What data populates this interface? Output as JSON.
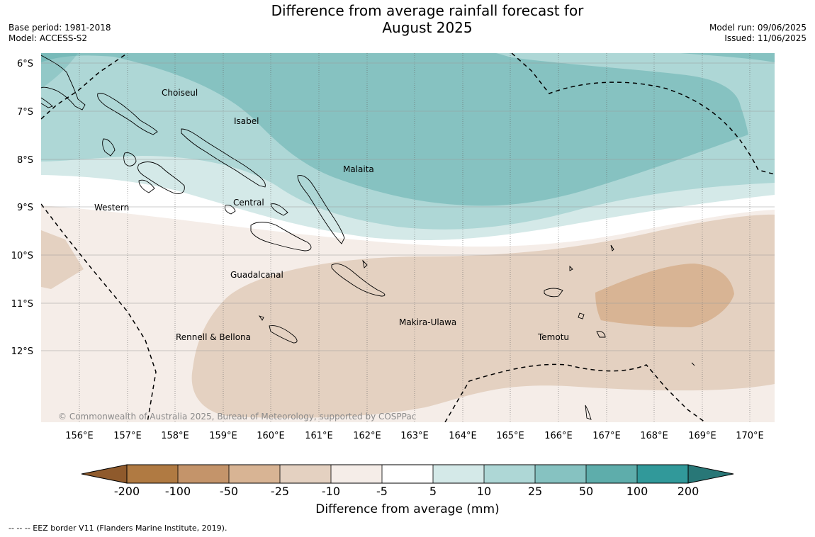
{
  "title": {
    "line1": "Difference from average rainfall forecast for",
    "line2": "August 2025"
  },
  "meta": {
    "base_period": "Base period: 1981-2018",
    "model": "Model: ACCESS-S2",
    "model_run": "Model run: 09/06/2025",
    "issued": "Issued: 11/06/2025"
  },
  "map": {
    "lon_range": [
      155.2,
      170.5
    ],
    "lat_range": [
      -13.5,
      -5.8
    ],
    "lon_ticks": [
      "156°E",
      "157°E",
      "158°E",
      "159°E",
      "160°E",
      "161°E",
      "162°E",
      "163°E",
      "164°E",
      "165°E",
      "166°E",
      "167°E",
      "168°E",
      "169°E",
      "170°E"
    ],
    "lat_ticks": [
      "6°S",
      "7°S",
      "8°S",
      "9°S",
      "10°S",
      "11°S",
      "12°S"
    ],
    "province_labels": [
      {
        "name": "Choiseul"
      },
      {
        "name": "Isabel"
      },
      {
        "name": "Malaita"
      },
      {
        "name": "Western"
      },
      {
        "name": "Central"
      },
      {
        "name": "Guadalcanal"
      },
      {
        "name": "Makira-Ulawa"
      },
      {
        "name": "Rennell & Bellona"
      },
      {
        "name": "Temotu"
      }
    ],
    "copyright": "© Commonwealth of Australia 2025, Bureau of Meteorology, supported by COSPPac"
  },
  "colorbar": {
    "title": "Difference from average (mm)",
    "tick_labels": [
      "-200",
      "-100",
      "-50",
      "-25",
      "-10",
      "-5",
      "5",
      "10",
      "25",
      "50",
      "100",
      "200"
    ],
    "colors": [
      "#8f5a2c",
      "#b07a42",
      "#c4946a",
      "#d8b494",
      "#e4d1c1",
      "#f5ede8",
      "#ffffff",
      "#d4e9e8",
      "#aed7d6",
      "#86c2c1",
      "#5eadab",
      "#31999a",
      "#287777"
    ]
  },
  "footnote": "--  --  -- EEZ border V11 (Flanders Marine Institute, 2019)."
}
